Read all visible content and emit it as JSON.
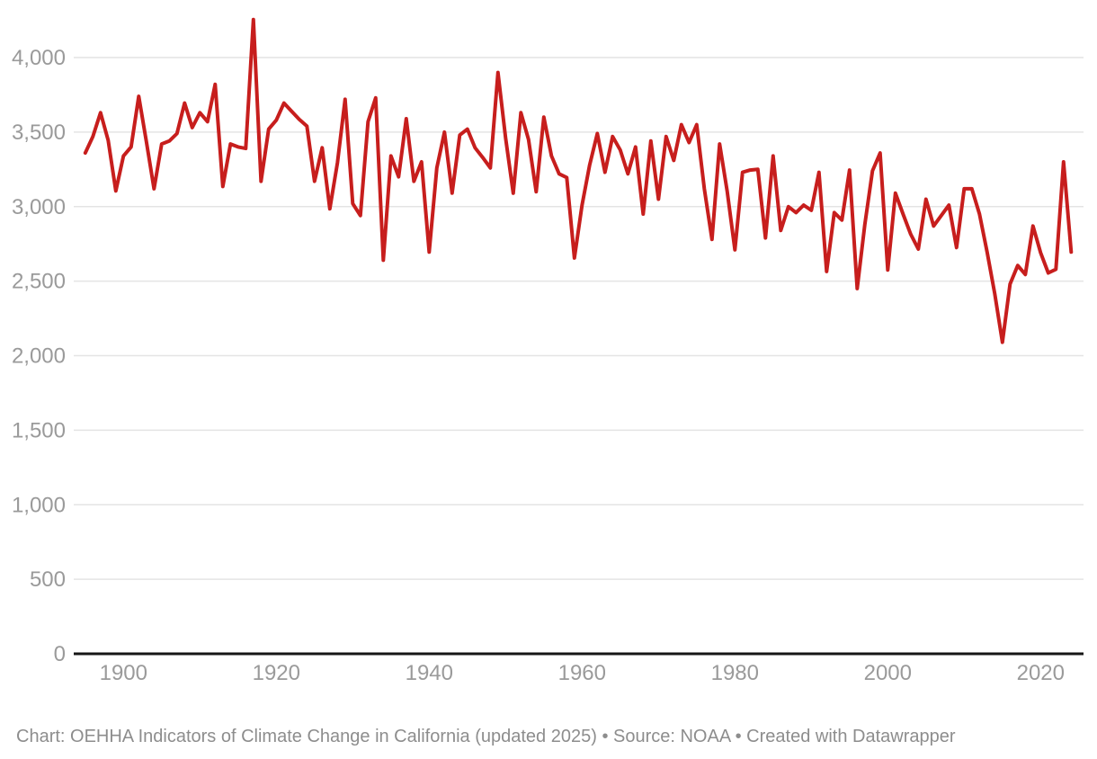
{
  "chart_data": {
    "type": "line",
    "x_range": [
      1895,
      2024
    ],
    "x_ticks": [
      1900,
      1920,
      1940,
      1960,
      1980,
      2000,
      2020
    ],
    "y_ticks": [
      0,
      500,
      1000,
      1500,
      2000,
      2500,
      3000,
      3500,
      4000
    ],
    "ylim": [
      0,
      4300
    ],
    "grid": "horizontal",
    "legend": "none",
    "line_color": "#c71e1d",
    "axis_label_color": "#9a9a9a",
    "gridline_color": "#e4e4e4",
    "baseline_color": "#161616",
    "values": [
      3360,
      3470,
      3630,
      3445,
      3105,
      3340,
      3400,
      3740,
      3435,
      3120,
      3420,
      3440,
      3490,
      3695,
      3530,
      3630,
      3570,
      3820,
      3135,
      3420,
      3400,
      3390,
      4255,
      3170,
      3520,
      3580,
      3695,
      3640,
      3585,
      3540,
      3170,
      3395,
      2985,
      3295,
      3720,
      3020,
      2940,
      3570,
      3730,
      2640,
      3340,
      3200,
      3590,
      3170,
      3300,
      2695,
      3260,
      3500,
      3090,
      3480,
      3520,
      3395,
      3330,
      3260,
      3900,
      3460,
      3090,
      3630,
      3450,
      3100,
      3600,
      3340,
      3220,
      3195,
      2655,
      3010,
      3280,
      3490,
      3230,
      3470,
      3380,
      3220,
      3400,
      2950,
      3440,
      3050,
      3470,
      3310,
      3550,
      3430,
      3550,
      3120,
      2780,
      3420,
      3100,
      2710,
      3230,
      3245,
      3250,
      2790,
      3340,
      2840,
      3000,
      2960,
      3010,
      2975,
      3230,
      2565,
      2960,
      2910,
      3245,
      2450,
      2880,
      3240,
      3360,
      2575,
      3090,
      2950,
      2815,
      2715,
      3050,
      2870,
      2940,
      3010,
      2725,
      3120,
      3120,
      2950,
      2695,
      2415,
      2090,
      2480,
      2605,
      2545,
      2870,
      2690,
      2555,
      2580,
      3300,
      2695
    ]
  },
  "footer": {
    "caption": "Chart: OEHHA Indicators of Climate Change in California (updated 2025) • Source: NOAA • Created with Datawrapper"
  }
}
